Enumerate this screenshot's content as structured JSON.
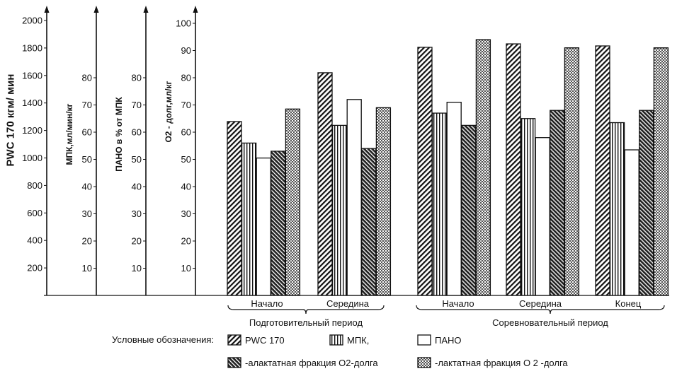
{
  "chart_data": {
    "type": "bar",
    "axes": [
      {
        "label": "PWC 170 кгм/ мин",
        "ticks": [
          "2000",
          "1800",
          "1600",
          "1400",
          "1200",
          "1000",
          "800",
          "600",
          "400",
          "200"
        ],
        "range": [
          0,
          2100
        ]
      },
      {
        "label": "МПК,мл/мин/кг",
        "ticks": [
          "80",
          "70",
          "60",
          "50",
          "40",
          "30",
          "20",
          "10"
        ],
        "range": [
          0,
          105
        ]
      },
      {
        "label": "ПАНО в % от МПК",
        "ticks": [
          "80",
          "70",
          "60",
          "50",
          "40",
          "30",
          "20",
          "10"
        ],
        "range": [
          0,
          105
        ]
      },
      {
        "label": "O2 - долг,мл/кг",
        "ticks": [
          "100",
          "90",
          "80",
          "70",
          "60",
          "50",
          "40",
          "30",
          "20",
          "10"
        ],
        "range": [
          0,
          105
        ]
      }
    ],
    "periods": [
      {
        "label": "Подготовительный период",
        "categories": [
          "Начало",
          "Середина"
        ]
      },
      {
        "label": "Соревновательный период",
        "categories": [
          "Начало",
          "Середина",
          "Конец"
        ]
      }
    ],
    "categories": [
      "Начало",
      "Середина",
      "Начало",
      "Середина",
      "Конец"
    ],
    "series": [
      {
        "name": "PWC 170",
        "pattern": "diag",
        "values": [
          1265,
          1620,
          1805,
          1830,
          1815
        ]
      },
      {
        "name": "МПК,",
        "pattern": "vert",
        "values": [
          56,
          62.5,
          67,
          65,
          63.5
        ]
      },
      {
        "name": "ПАНО",
        "pattern": "empty",
        "values": [
          50.5,
          72,
          71,
          58,
          53.5
        ]
      },
      {
        "name": "-алактатная фракция O2-долга",
        "pattern": "cross",
        "values": [
          53,
          54,
          62.5,
          68,
          68
        ]
      },
      {
        "name": "-лактатная фракция O 2 -долга",
        "pattern": "dots",
        "values": [
          68.5,
          69,
          94,
          91,
          91
        ]
      }
    ],
    "legend_title": "Условные обозначения:"
  }
}
